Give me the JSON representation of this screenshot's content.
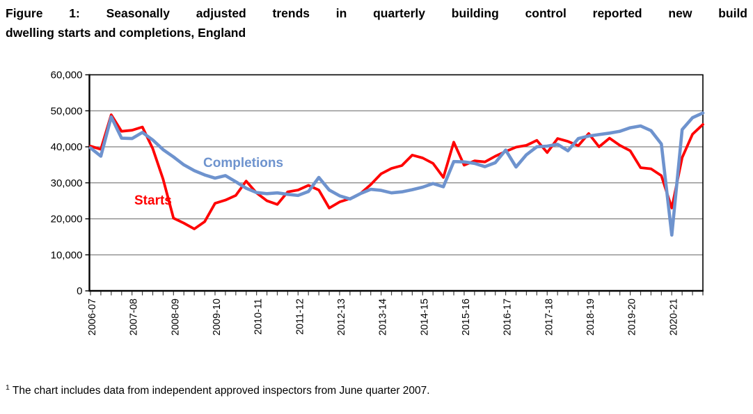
{
  "title": {
    "line1": "Figure 1: Seasonally adjusted trends in quarterly building control reported new build",
    "line2": "dwelling starts and completions, England"
  },
  "footnote": {
    "marker": "1",
    "text": "The chart includes data from independent approved inspectors from June quarter 2007."
  },
  "chart_data": {
    "type": "line",
    "title": "Figure 1: Seasonally adjusted trends in quarterly building control reported new build dwelling starts and completions, England",
    "xlabel": "",
    "ylabel": "",
    "ylim": [
      0,
      60000
    ],
    "grid": "horizontal",
    "n_points": 60,
    "points_per_year": 4,
    "x_year_labels": [
      "2006-07",
      "2007-08",
      "2008-09",
      "2009-10",
      "2010-11",
      "2011-12",
      "2012-13",
      "2013-14",
      "2014-15",
      "2015-16",
      "2016-17",
      "2017-18",
      "2018-19",
      "2019-20",
      "2020-21"
    ],
    "y_ticks": [
      0,
      10000,
      20000,
      30000,
      40000,
      50000,
      60000
    ],
    "y_tick_labels": [
      "0",
      "10,000",
      "20,000",
      "30,000",
      "40,000",
      "50,000",
      "60,000"
    ],
    "gridline_color": "#808080",
    "axis_color": "#000000",
    "series": [
      {
        "name": "Starts",
        "color": "#FF0000",
        "line_width": 3.8,
        "label": {
          "text": "Starts",
          "x": 193,
          "y": 294
        },
        "values": [
          40200,
          39300,
          48900,
          44300,
          44600,
          45500,
          39500,
          31000,
          20200,
          18800,
          17200,
          19200,
          24300,
          25200,
          26500,
          30500,
          27200,
          25000,
          24000,
          27500,
          28000,
          29300,
          28000,
          23000,
          24700,
          25600,
          27000,
          29500,
          32500,
          34000,
          34800,
          37700,
          36900,
          35400,
          31500,
          41300,
          34900,
          36100,
          35800,
          37400,
          38700,
          39900,
          40400,
          41800,
          38400,
          42300,
          41500,
          40300,
          43700,
          40000,
          42400,
          40400,
          38900,
          34200,
          33900,
          32000,
          23000,
          37000,
          43500,
          46200
        ]
      },
      {
        "name": "Completions",
        "color": "#6E93CE",
        "line_width": 4.6,
        "label": {
          "text": "Completions",
          "x": 292,
          "y": 240
        },
        "values": [
          39700,
          37400,
          48300,
          42400,
          42300,
          44000,
          41900,
          39200,
          37200,
          35000,
          33400,
          32200,
          31300,
          32000,
          30300,
          28500,
          27300,
          27000,
          27200,
          26800,
          26500,
          27600,
          31500,
          28000,
          26400,
          25500,
          27000,
          28200,
          27900,
          27200,
          27500,
          28100,
          28800,
          29800,
          28900,
          35900,
          35800,
          35400,
          34500,
          35600,
          39100,
          34400,
          37800,
          40000,
          40200,
          40700,
          38900,
          42300,
          43000,
          43400,
          43800,
          44300,
          45300,
          45800,
          44500,
          40800,
          15500,
          44800,
          48100,
          49400
        ]
      }
    ]
  }
}
